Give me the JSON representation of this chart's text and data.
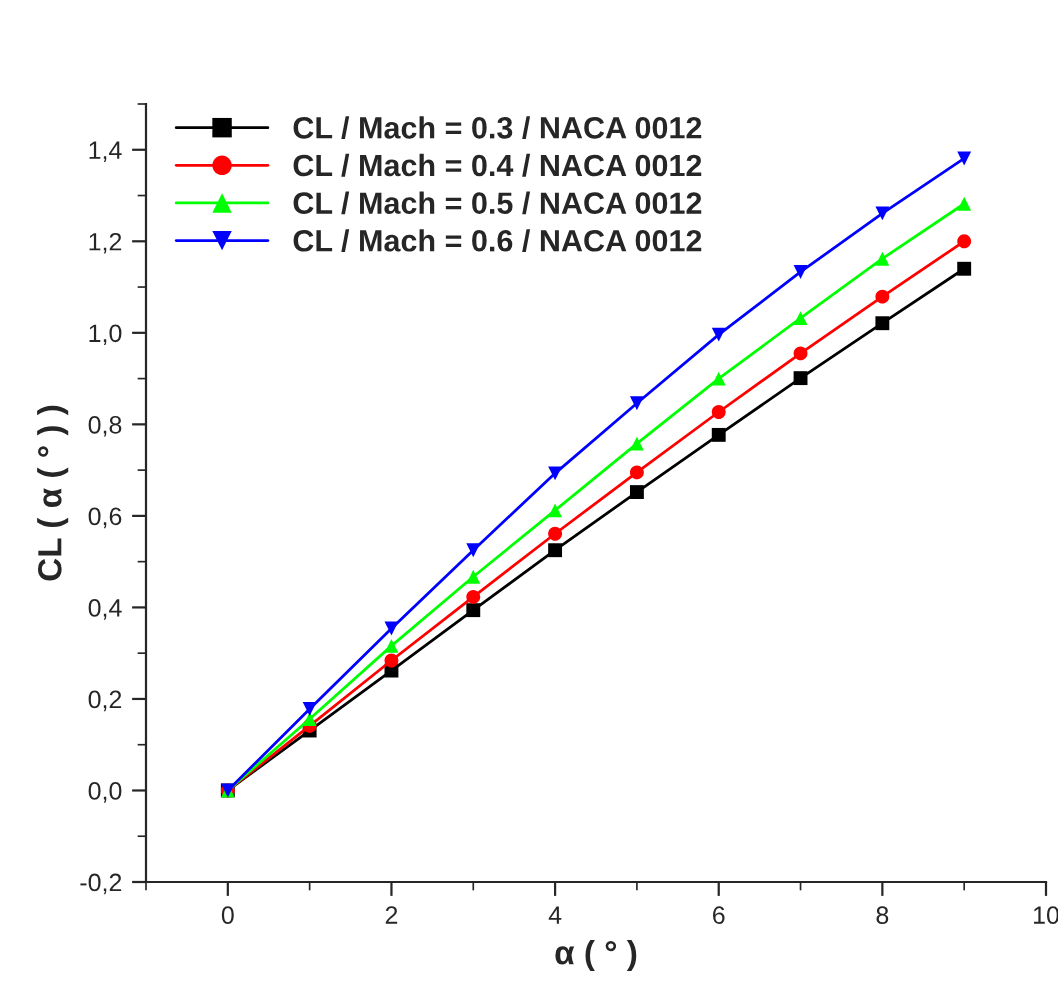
{
  "chart_data": {
    "type": "line",
    "xlabel": "α ( ° )",
    "ylabel": "CL ( α ( ° ) )",
    "x": [
      0,
      1,
      2,
      3,
      4,
      5,
      6,
      7,
      8,
      9
    ],
    "series": [
      {
        "name": "CL / Mach = 0.3 / NACA 0012",
        "color": "#000000",
        "marker": "square",
        "values": [
          0,
          0.131,
          0.262,
          0.394,
          0.525,
          0.652,
          0.777,
          0.901,
          1.021,
          1.14
        ]
      },
      {
        "name": "CL / Mach = 0.4 / NACA 0012",
        "color": "#ff0000",
        "marker": "circle",
        "values": [
          0,
          0.141,
          0.284,
          0.423,
          0.561,
          0.695,
          0.827,
          0.955,
          1.079,
          1.2
        ]
      },
      {
        "name": "CL / Mach = 0.5 / NACA 0012",
        "color": "#00ff00",
        "marker": "triangle",
        "values": [
          0,
          0.156,
          0.316,
          0.467,
          0.612,
          0.758,
          0.9,
          1.032,
          1.162,
          1.282
        ]
      },
      {
        "name": "CL / Mach = 0.6 / NACA 0012",
        "color": "#0000ff",
        "marker": "triangle_down",
        "values": [
          0,
          0.178,
          0.354,
          0.525,
          0.693,
          0.846,
          0.996,
          1.133,
          1.261,
          1.381
        ]
      }
    ],
    "xlim": [
      -1,
      10
    ],
    "ylim": [
      -0.2,
      1.5
    ],
    "xticks": [
      0,
      2,
      4,
      6,
      8,
      10
    ],
    "yticks": [
      {
        "value": -0.2,
        "label": "-0,2"
      },
      {
        "value": 0,
        "label": "0,0"
      },
      {
        "value": 0.2,
        "label": "0,2"
      },
      {
        "value": 0.4,
        "label": "0,4"
      },
      {
        "value": 0.6,
        "label": "0,6"
      },
      {
        "value": 0.8,
        "label": "0,8"
      },
      {
        "value": 1.0,
        "label": "1,0"
      },
      {
        "value": 1.2,
        "label": "1,2"
      },
      {
        "value": 1.4,
        "label": "1,4"
      }
    ],
    "grid": false,
    "legend": "top",
    "line_style": "solid"
  }
}
